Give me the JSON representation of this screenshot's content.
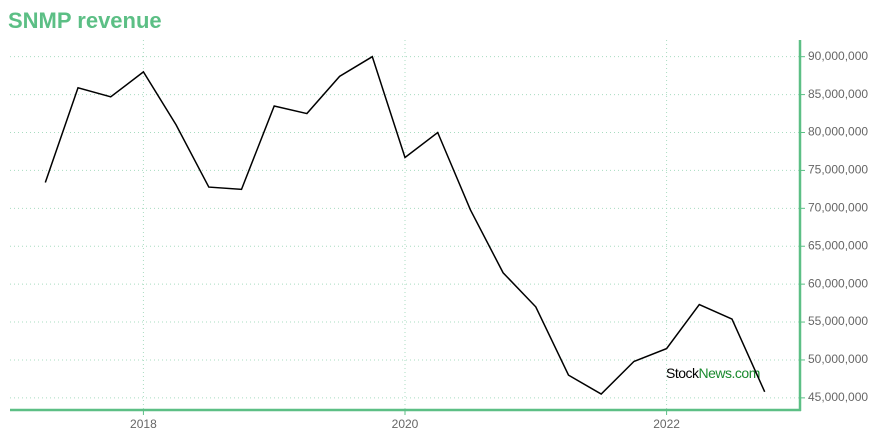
{
  "chart_data": {
    "type": "line",
    "title": "SNMP revenue",
    "x": [
      2017.25,
      2017.5,
      2017.75,
      2018.0,
      2018.25,
      2018.5,
      2018.75,
      2019.0,
      2019.25,
      2019.5,
      2019.75,
      2020.0,
      2020.25,
      2020.5,
      2020.75,
      2021.0,
      2021.25,
      2021.5,
      2021.75,
      2022.0,
      2022.25,
      2022.5,
      2022.75
    ],
    "values": [
      73400000,
      85900000,
      84700000,
      88000000,
      81000000,
      72800000,
      72500000,
      83500000,
      82500000,
      87400000,
      90000000,
      76700000,
      80000000,
      69800000,
      61500000,
      57000000,
      48000000,
      45500000,
      49800000,
      51500000,
      57300000,
      55400000,
      45800000
    ],
    "color": "#000000",
    "xlim": [
      2016.98,
      2023.02
    ],
    "xticks": [
      2018,
      2020,
      2022
    ],
    "ylim": [
      43400000,
      92200000
    ],
    "yticks": [
      {
        "value": 45000000,
        "label": "45,000,000"
      },
      {
        "value": 50000000,
        "label": "50,000,000"
      },
      {
        "value": 55000000,
        "label": "55,000,000"
      },
      {
        "value": 60000000,
        "label": "60,000,000"
      },
      {
        "value": 65000000,
        "label": "65,000,000"
      },
      {
        "value": 70000000,
        "label": "70,000,000"
      },
      {
        "value": 75000000,
        "label": "75,000,000"
      },
      {
        "value": 80000000,
        "label": "80,000,000"
      },
      {
        "value": 85000000,
        "label": "85,000,000"
      },
      {
        "value": 90000000,
        "label": "90,000,000"
      }
    ],
    "grid": true,
    "watermark": [
      "Stock",
      "News.com"
    ]
  }
}
